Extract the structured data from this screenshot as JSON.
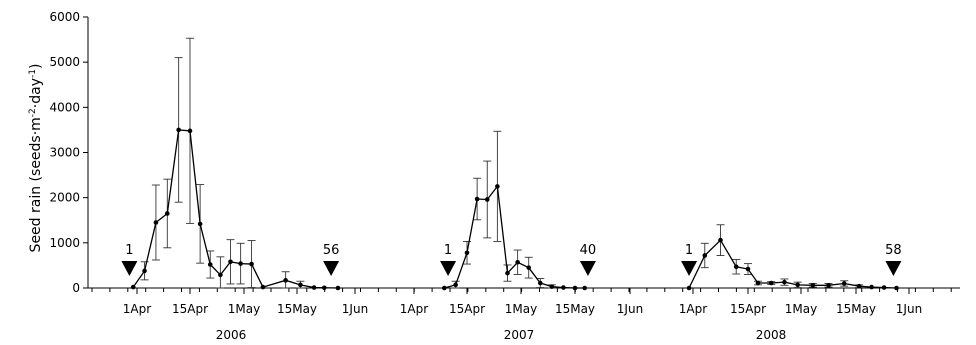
{
  "chart_data": {
    "type": "line",
    "ylabel": "Seed rain (seeds·m-2·day-1)",
    "ylim": [
      0,
      6000
    ],
    "yticks": [
      0,
      1000,
      2000,
      3000,
      4000,
      5000,
      6000
    ],
    "panels": [
      {
        "year": "2006",
        "xticks": [
          "1Apr",
          "15Apr",
          "1May",
          "15May",
          "1Jun"
        ],
        "series": [
          {
            "x": [
              "2006-03-31",
              "2006-04-03",
              "2006-04-06",
              "2006-04-09",
              "2006-04-12",
              "2006-04-15",
              "2006-04-18",
              "2006-04-21",
              "2006-04-24",
              "2006-04-27",
              "2006-04-30",
              "2006-05-03",
              "2006-05-06",
              "2006-05-12",
              "2006-05-16",
              "2006-05-20",
              "2006-05-23",
              "2006-05-27"
            ],
            "y": [
              20,
              380,
              1450,
              1650,
              3500,
              3480,
              1420,
              520,
              290,
              580,
              540,
              530,
              20,
              170,
              70,
              10,
              5,
              0
            ],
            "err": [
              0,
              200,
              830,
              760,
              1600,
              2050,
              870,
              300,
              400,
              490,
              450,
              520,
              0,
              190,
              80,
              0,
              0,
              0
            ]
          }
        ],
        "markers": [
          {
            "x": "2006-03-30",
            "label": "1"
          },
          {
            "x": "2006-05-25",
            "label": "56"
          }
        ]
      },
      {
        "year": "2007",
        "xticks": [
          "1Apr",
          "15Apr",
          "1May",
          "15May",
          "1Jun"
        ],
        "series": [
          {
            "x": [
              "2007-04-09",
              "2007-04-12",
              "2007-04-15",
              "2007-04-18",
              "2007-04-21",
              "2007-04-24",
              "2007-04-27",
              "2007-04-30",
              "2007-05-03",
              "2007-05-06",
              "2007-05-09",
              "2007-05-12",
              "2007-05-15",
              "2007-05-18"
            ],
            "y": [
              0,
              70,
              780,
              1970,
              1960,
              2250,
              330,
              570,
              450,
              110,
              30,
              10,
              0,
              0
            ],
            "err": [
              0,
              80,
              250,
              460,
              850,
              1220,
              180,
              270,
              230,
              100,
              40,
              0,
              0,
              0
            ]
          }
        ],
        "markers": [
          {
            "x": "2007-04-10",
            "label": "1"
          },
          {
            "x": "2007-05-19",
            "label": "40"
          }
        ]
      },
      {
        "year": "2008",
        "xticks": [
          "1Apr",
          "15Apr",
          "1May",
          "15May",
          "1Jun"
        ],
        "series": [
          {
            "x": [
              "2008-03-31",
              "2008-04-04",
              "2008-04-08",
              "2008-04-12",
              "2008-04-15",
              "2008-04-18",
              "2008-04-22",
              "2008-04-26",
              "2008-04-30",
              "2008-05-04",
              "2008-05-08",
              "2008-05-12",
              "2008-05-16",
              "2008-05-20",
              "2008-05-24",
              "2008-05-28"
            ],
            "y": [
              0,
              720,
              1060,
              470,
              420,
              110,
              110,
              130,
              70,
              60,
              60,
              100,
              40,
              20,
              10,
              0
            ],
            "err": [
              0,
              270,
              340,
              160,
              120,
              40,
              30,
              70,
              60,
              40,
              40,
              60,
              30,
              0,
              0,
              0
            ]
          }
        ],
        "markers": [
          {
            "x": "2008-03-31",
            "label": "1"
          },
          {
            "x": "2008-05-27",
            "label": "58"
          }
        ]
      }
    ]
  }
}
